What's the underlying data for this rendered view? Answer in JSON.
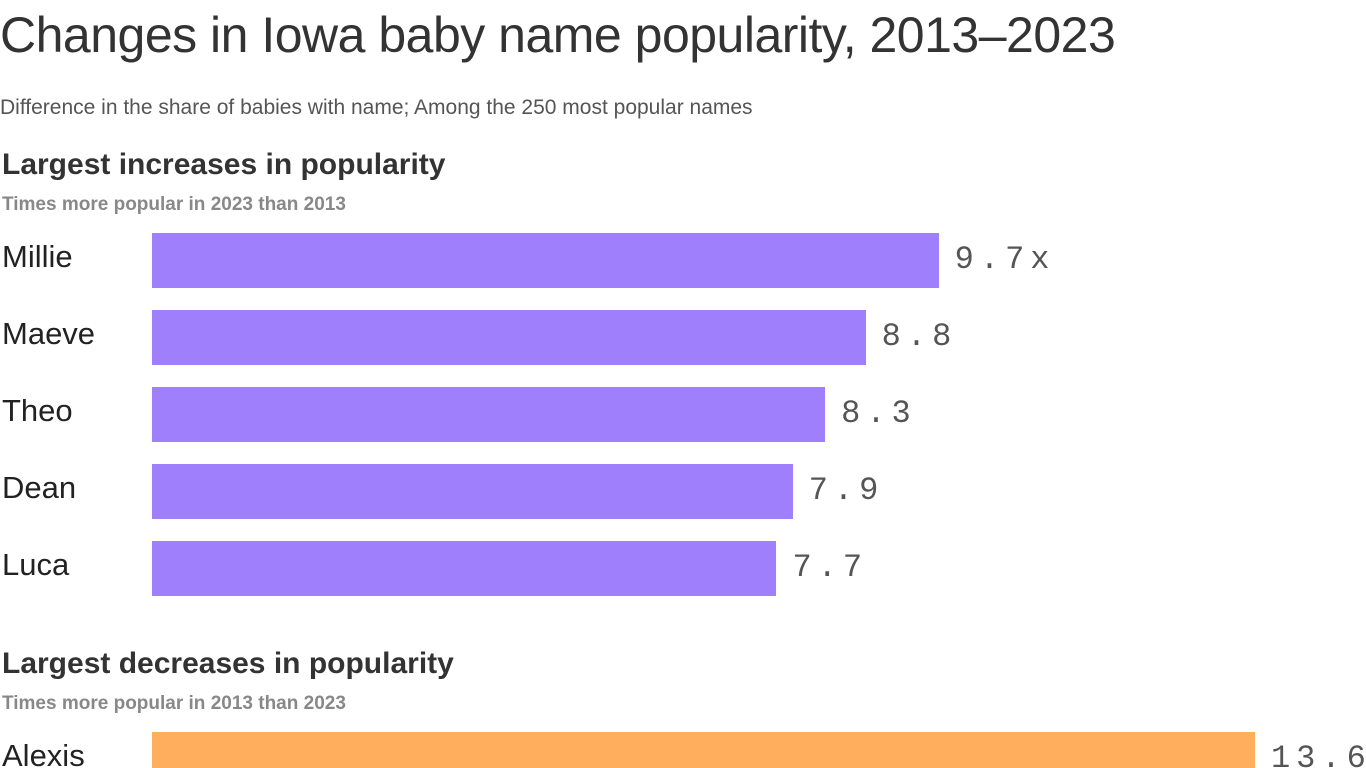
{
  "chart_data": [
    {
      "type": "bar",
      "orientation": "horizontal",
      "title": "Largest increases in popularity",
      "subtitle": "Times more popular in 2023 than 2013",
      "categories": [
        "Millie",
        "Maeve",
        "Theo",
        "Dean",
        "Luca"
      ],
      "values": [
        9.7,
        8.8,
        8.3,
        7.9,
        7.7
      ],
      "value_labels": [
        "9.7x",
        "8.8",
        "8.3",
        "7.9",
        "7.7"
      ],
      "color": "#a07ffd",
      "xlim": [
        0,
        14
      ]
    },
    {
      "type": "bar",
      "orientation": "horizontal",
      "title": "Largest decreases in popularity",
      "subtitle": "Times more popular in 2013 than 2023",
      "categories": [
        "Alexis"
      ],
      "values": [
        13.6
      ],
      "value_labels": [
        "13.6"
      ],
      "color": "#ffae5e",
      "xlim": [
        0,
        14
      ]
    }
  ],
  "header": {
    "title": "Changes in Iowa baby name popularity, 2013–2023",
    "subtitle": "Difference in the share of babies with name; Among the 250 most popular names"
  }
}
